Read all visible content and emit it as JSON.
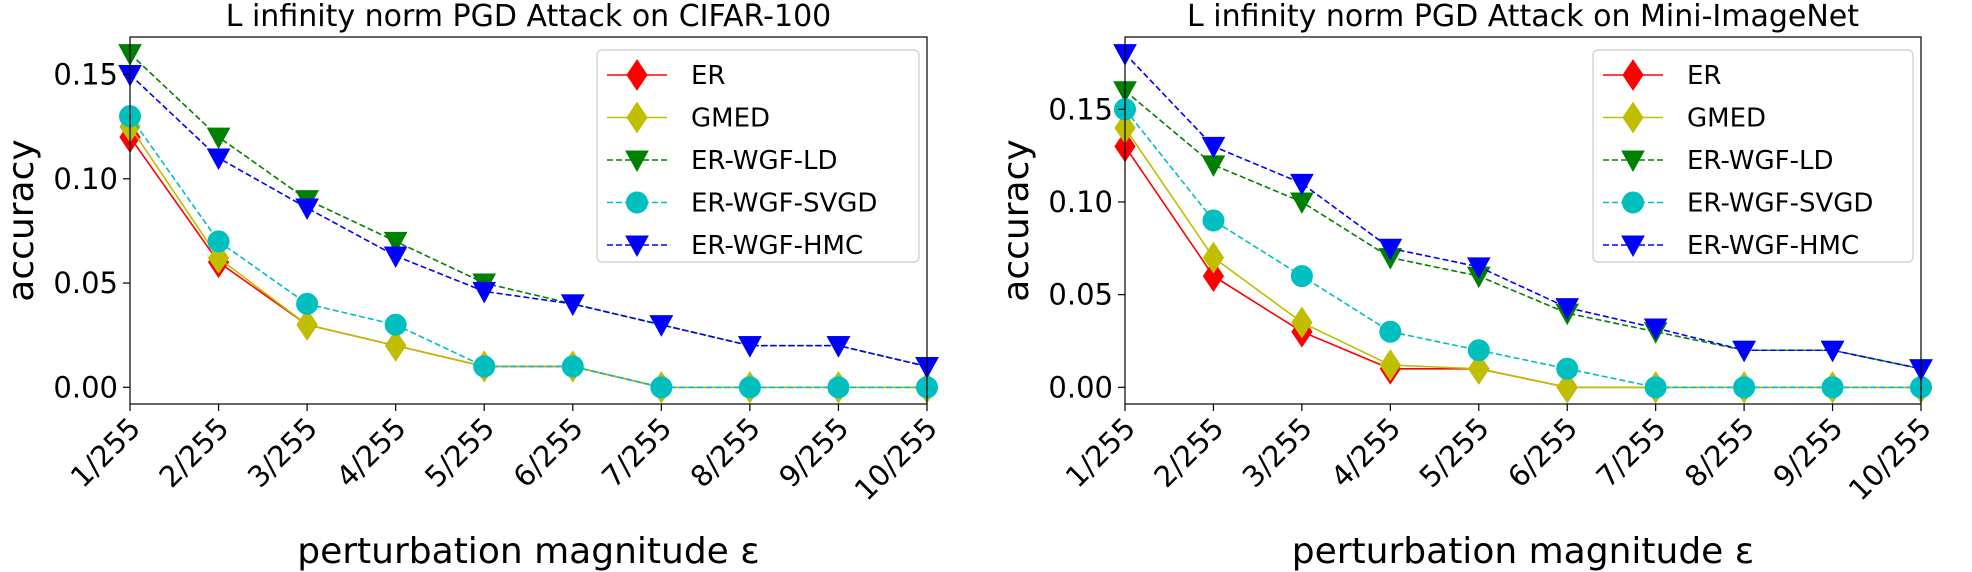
{
  "chart_data": [
    {
      "type": "line",
      "title": "L infinity norm PGD Attack on CIFAR-100",
      "xlabel": "perturbation magnitude ε",
      "ylabel": "accuracy",
      "categories": [
        "1/255",
        "2/255",
        "3/255",
        "4/255",
        "5/255",
        "6/255",
        "7/255",
        "8/255",
        "9/255",
        "10/255"
      ],
      "yticks": [
        "0.00",
        "0.05",
        "0.10",
        "0.15"
      ],
      "ytick_values": [
        0,
        0.05,
        0.1,
        0.15
      ],
      "ylim": [
        -0.008,
        0.168
      ],
      "legend_position": "upper right",
      "grid": false,
      "series": [
        {
          "name": "ER",
          "color": "#ff0000",
          "linestyle": "solid",
          "marker": "diamond",
          "values": [
            0.12,
            0.06,
            0.03,
            0.02,
            0.01,
            0.01,
            0.0,
            0.0,
            0.0,
            0.0
          ]
        },
        {
          "name": "GMED",
          "color": "#bfbf00",
          "linestyle": "solid",
          "marker": "diamond",
          "values": [
            0.125,
            0.062,
            0.03,
            0.02,
            0.01,
            0.01,
            0.0,
            0.0,
            0.0,
            0.0
          ]
        },
        {
          "name": "ER-WGF-LD",
          "color": "#008000",
          "linestyle": "dashed",
          "marker": "triangle-down",
          "values": [
            0.16,
            0.12,
            0.09,
            0.07,
            0.05,
            0.04,
            0.03,
            0.02,
            0.02,
            0.01
          ]
        },
        {
          "name": "ER-WGF-SVGD",
          "color": "#00bfbf",
          "linestyle": "dashed",
          "marker": "circle",
          "values": [
            0.13,
            0.07,
            0.04,
            0.03,
            0.01,
            0.01,
            0.0,
            0.0,
            0.0,
            0.0
          ]
        },
        {
          "name": "ER-WGF-HMC",
          "color": "#0000ff",
          "linestyle": "dashed",
          "marker": "triangle-down",
          "values": [
            0.15,
            0.11,
            0.086,
            0.063,
            0.046,
            0.04,
            0.03,
            0.02,
            0.02,
            0.01
          ]
        }
      ]
    },
    {
      "type": "line",
      "title": "L infinity norm PGD Attack on Mini-ImageNet",
      "xlabel": "perturbation magnitude ε",
      "ylabel": "accuracy",
      "categories": [
        "1/255",
        "2/255",
        "3/255",
        "4/255",
        "5/255",
        "6/255",
        "7/255",
        "8/255",
        "9/255",
        "10/255"
      ],
      "yticks": [
        "0.00",
        "0.05",
        "0.10",
        "0.15"
      ],
      "ytick_values": [
        0,
        0.05,
        0.1,
        0.15
      ],
      "ylim": [
        -0.009,
        0.189
      ],
      "legend_position": "upper right",
      "grid": false,
      "series": [
        {
          "name": "ER",
          "color": "#ff0000",
          "linestyle": "solid",
          "marker": "diamond",
          "values": [
            0.13,
            0.06,
            0.03,
            0.01,
            0.01,
            0.0,
            0.0,
            0.0,
            0.0,
            0.0
          ]
        },
        {
          "name": "GMED",
          "color": "#bfbf00",
          "linestyle": "solid",
          "marker": "diamond",
          "values": [
            0.14,
            0.07,
            0.035,
            0.012,
            0.01,
            0.0,
            0.0,
            0.0,
            0.0,
            0.0
          ]
        },
        {
          "name": "ER-WGF-LD",
          "color": "#008000",
          "linestyle": "dashed",
          "marker": "triangle-down",
          "values": [
            0.16,
            0.12,
            0.1,
            0.07,
            0.06,
            0.04,
            0.03,
            0.02,
            0.02,
            0.01
          ]
        },
        {
          "name": "ER-WGF-SVGD",
          "color": "#00bfbf",
          "linestyle": "dashed",
          "marker": "circle",
          "values": [
            0.15,
            0.09,
            0.06,
            0.03,
            0.02,
            0.01,
            0.0,
            0.0,
            0.0,
            0.0
          ]
        },
        {
          "name": "ER-WGF-HMC",
          "color": "#0000ff",
          "linestyle": "dashed",
          "marker": "triangle-down",
          "values": [
            0.18,
            0.13,
            0.11,
            0.075,
            0.065,
            0.043,
            0.032,
            0.02,
            0.02,
            0.01
          ]
        }
      ]
    }
  ]
}
